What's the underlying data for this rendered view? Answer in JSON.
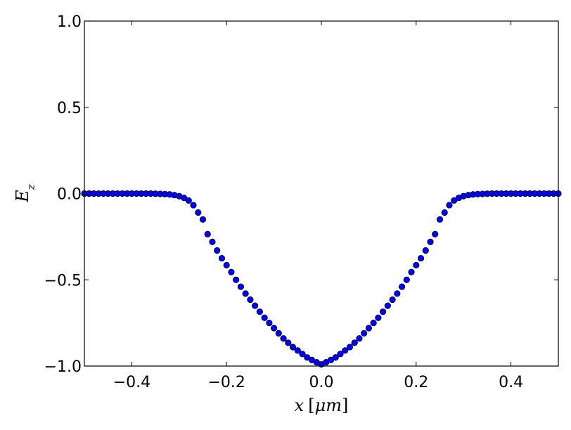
{
  "chart_data": {
    "type": "scatter",
    "xlabel": {
      "var": "x",
      "unit": "μm",
      "open": "[",
      "close": "]"
    },
    "ylabel": {
      "base": "E",
      "sub": "z"
    },
    "xlim": [
      -0.5,
      0.5
    ],
    "ylim": [
      -1.0,
      1.0
    ],
    "xticks": [
      -0.4,
      -0.2,
      0.0,
      0.2,
      0.4
    ],
    "xtick_labels": [
      "−0.4",
      "−0.2",
      "0.0",
      "0.2",
      "0.4"
    ],
    "yticks": [
      -1.0,
      -0.5,
      0.0,
      0.5,
      1.0
    ],
    "ytick_labels": [
      "−1.0",
      "−0.5",
      "0.0",
      "0.5",
      "1.0"
    ],
    "grid": false,
    "marker_color": "#0000ff",
    "marker_edge_color": "#000000",
    "series": [
      {
        "x": [
          -0.5,
          -0.49,
          -0.48,
          -0.47,
          -0.46,
          -0.45,
          -0.44,
          -0.43,
          -0.42,
          -0.41,
          -0.4,
          -0.39,
          -0.38,
          -0.37,
          -0.36,
          -0.35,
          -0.34,
          -0.33,
          -0.32,
          -0.31,
          -0.3,
          -0.29,
          -0.28,
          -0.27,
          -0.26,
          -0.25,
          -0.24,
          -0.23,
          -0.22,
          -0.21,
          -0.2,
          -0.19,
          -0.18,
          -0.17,
          -0.16,
          -0.15,
          -0.14,
          -0.13,
          -0.12,
          -0.11,
          -0.1,
          -0.09,
          -0.08,
          -0.07,
          -0.06,
          -0.05,
          -0.04,
          -0.03,
          -0.02,
          -0.01,
          0.0,
          0.01,
          0.02,
          0.03,
          0.04,
          0.05,
          0.06,
          0.07,
          0.08,
          0.09,
          0.1,
          0.11,
          0.12,
          0.13,
          0.14,
          0.15,
          0.16,
          0.17,
          0.18,
          0.19,
          0.2,
          0.21,
          0.22,
          0.23,
          0.24,
          0.25,
          0.26,
          0.27,
          0.28,
          0.29,
          0.3,
          0.31,
          0.32,
          0.33,
          0.34,
          0.35,
          0.36,
          0.37,
          0.38,
          0.39,
          0.4,
          0.41,
          0.42,
          0.43,
          0.44,
          0.45,
          0.46,
          0.47,
          0.48,
          0.49,
          0.5
        ],
        "y": [
          0.0,
          0.0,
          0.0,
          0.0,
          0.0,
          0.0,
          0.0,
          0.0,
          0.0,
          0.0,
          0.0,
          0.0,
          0.0,
          0.0,
          0.0,
          -0.001,
          -0.002,
          -0.003,
          -0.005,
          -0.009,
          -0.015,
          -0.025,
          -0.04,
          -0.067,
          -0.11,
          -0.15,
          -0.235,
          -0.28,
          -0.33,
          -0.375,
          -0.415,
          -0.455,
          -0.5,
          -0.54,
          -0.58,
          -0.615,
          -0.65,
          -0.685,
          -0.72,
          -0.75,
          -0.78,
          -0.81,
          -0.84,
          -0.865,
          -0.89,
          -0.91,
          -0.93,
          -0.95,
          -0.965,
          -0.978,
          -0.99,
          -0.978,
          -0.965,
          -0.95,
          -0.93,
          -0.91,
          -0.89,
          -0.865,
          -0.84,
          -0.81,
          -0.78,
          -0.75,
          -0.72,
          -0.685,
          -0.65,
          -0.615,
          -0.58,
          -0.54,
          -0.5,
          -0.455,
          -0.415,
          -0.375,
          -0.33,
          -0.28,
          -0.235,
          -0.15,
          -0.11,
          -0.067,
          -0.04,
          -0.025,
          -0.015,
          -0.009,
          -0.005,
          -0.003,
          -0.002,
          -0.001,
          0.0,
          0.0,
          0.0,
          0.0,
          0.0,
          0.0,
          0.0,
          0.0,
          0.0,
          0.0,
          0.0,
          0.0,
          0.0,
          0.0,
          0.0
        ]
      }
    ]
  }
}
